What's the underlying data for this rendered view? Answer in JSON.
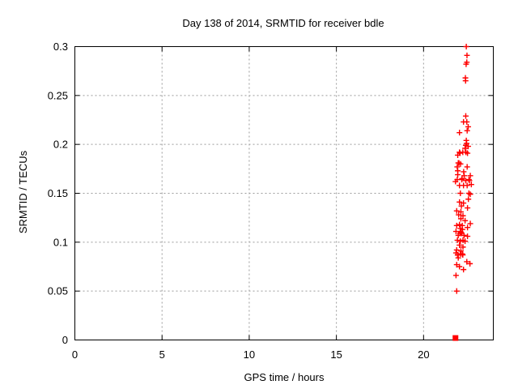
{
  "chart_data": {
    "type": "scatter",
    "title": "Day 138 of 2014, SRMTID for receiver bdle",
    "xlabel": "GPS time / hours",
    "ylabel": "SRMTID / TECUs",
    "xlim": [
      0,
      24
    ],
    "ylim": [
      0,
      0.3
    ],
    "xticks": [
      0,
      5,
      10,
      15,
      20
    ],
    "xtick_labels": [
      "0",
      "5",
      "10",
      "15",
      "20"
    ],
    "yticks": [
      0,
      0.05,
      0.1,
      0.15,
      0.2,
      0.25,
      0.3
    ],
    "ytick_labels": [
      "0",
      "0.05",
      "0.1",
      "0.15",
      "0.2",
      "0.25",
      "0.3"
    ],
    "grid": {
      "show": true,
      "color": "#9b9b9b",
      "style": "dotted",
      "position": "major-ticks"
    },
    "legend": "none",
    "marker_color": "#ff0000",
    "series": [
      {
        "name": "srmtid-values",
        "marker": "plus",
        "color": "#ff0000",
        "points": [
          [
            22.45,
            0.3
          ],
          [
            22.49,
            0.291
          ],
          [
            22.48,
            0.284
          ],
          [
            22.44,
            0.282
          ],
          [
            22.4,
            0.268
          ],
          [
            22.41,
            0.265
          ],
          [
            22.42,
            0.229
          ],
          [
            22.29,
            0.223
          ],
          [
            22.48,
            0.223
          ],
          [
            22.56,
            0.218
          ],
          [
            22.5,
            0.214
          ],
          [
            22.06,
            0.212
          ],
          [
            22.45,
            0.204
          ],
          [
            22.47,
            0.201
          ],
          [
            22.42,
            0.199
          ],
          [
            22.56,
            0.198
          ],
          [
            22.38,
            0.196
          ],
          [
            22.06,
            0.192
          ],
          [
            22.25,
            0.192
          ],
          [
            22.43,
            0.192
          ],
          [
            22.52,
            0.191
          ],
          [
            22.09,
            0.191
          ],
          [
            21.96,
            0.189
          ],
          [
            21.99,
            0.181
          ],
          [
            22.03,
            0.181
          ],
          [
            22.12,
            0.18
          ],
          [
            21.93,
            0.177
          ],
          [
            22.5,
            0.177
          ],
          [
            21.96,
            0.173
          ],
          [
            22.3,
            0.172
          ],
          [
            22.33,
            0.168
          ],
          [
            21.96,
            0.169
          ],
          [
            22.68,
            0.168
          ],
          [
            21.93,
            0.164
          ],
          [
            22.19,
            0.164
          ],
          [
            22.21,
            0.165
          ],
          [
            22.42,
            0.163
          ],
          [
            22.6,
            0.164
          ],
          [
            22.63,
            0.163
          ],
          [
            21.83,
            0.162
          ],
          [
            22.06,
            0.158
          ],
          [
            22.29,
            0.158
          ],
          [
            22.5,
            0.158
          ],
          [
            22.74,
            0.159
          ],
          [
            22.11,
            0.15
          ],
          [
            22.6,
            0.15
          ],
          [
            22.68,
            0.149
          ],
          [
            22.57,
            0.144
          ],
          [
            22.06,
            0.141
          ],
          [
            22.29,
            0.14
          ],
          [
            22.17,
            0.137
          ],
          [
            22.52,
            0.135
          ],
          [
            21.9,
            0.132
          ],
          [
            22.14,
            0.131
          ],
          [
            22.01,
            0.128
          ],
          [
            22.26,
            0.127
          ],
          [
            22.14,
            0.124
          ],
          [
            22.38,
            0.122
          ],
          [
            22.68,
            0.119
          ],
          [
            22.06,
            0.118
          ],
          [
            21.9,
            0.117
          ],
          [
            22.22,
            0.117
          ],
          [
            22.11,
            0.114
          ],
          [
            22.23,
            0.113
          ],
          [
            22.52,
            0.115
          ],
          [
            21.86,
            0.111
          ],
          [
            22.12,
            0.111
          ],
          [
            22.14,
            0.11
          ],
          [
            22.09,
            0.109
          ],
          [
            22.19,
            0.109
          ],
          [
            21.99,
            0.107
          ],
          [
            22.32,
            0.107
          ],
          [
            22.52,
            0.106
          ],
          [
            21.94,
            0.102
          ],
          [
            22.11,
            0.101
          ],
          [
            22.26,
            0.102
          ],
          [
            22.38,
            0.101
          ],
          [
            22.06,
            0.097
          ],
          [
            22.26,
            0.095
          ],
          [
            21.9,
            0.092
          ],
          [
            22.14,
            0.091
          ],
          [
            21.95,
            0.087
          ],
          [
            21.86,
            0.089
          ],
          [
            22.11,
            0.088
          ],
          [
            22.22,
            0.088
          ],
          [
            22.25,
            0.087
          ],
          [
            21.99,
            0.084
          ],
          [
            22.48,
            0.08
          ],
          [
            22.66,
            0.078
          ],
          [
            21.9,
            0.077
          ],
          [
            22.06,
            0.075
          ],
          [
            22.29,
            0.072
          ],
          [
            21.86,
            0.066
          ],
          [
            21.9,
            0.05
          ]
        ]
      },
      {
        "name": "zero-value-point",
        "marker": "filled-square",
        "color": "#ff0000",
        "points": [
          [
            21.83,
            0.002
          ]
        ]
      }
    ]
  }
}
